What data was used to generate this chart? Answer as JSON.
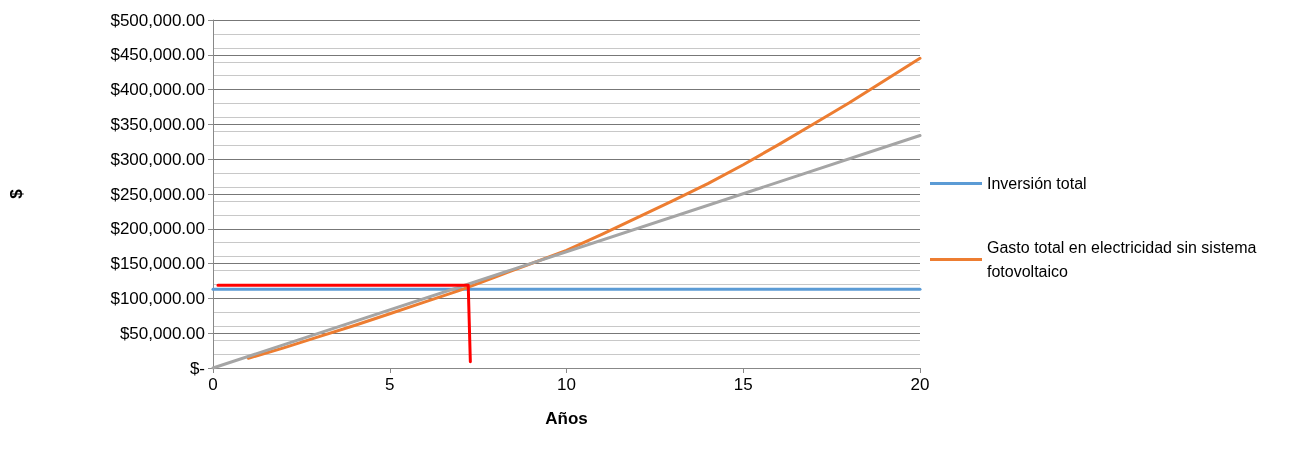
{
  "chart_data": {
    "type": "line",
    "xlabel": "Años",
    "ylabel": "$",
    "series": [
      {
        "name": "Inversión total",
        "color": "#5b9bd5",
        "x": [
          0,
          20
        ],
        "values": [
          113000,
          113000
        ]
      },
      {
        "name": "Gasto total en electricidad sin sistema fotovoltaico",
        "color": "#ed7d31",
        "x": [
          1,
          2,
          3,
          4,
          5,
          6,
          7,
          8,
          9,
          10,
          11,
          12,
          13,
          14,
          15,
          16,
          17,
          18,
          19,
          20
        ],
        "values": [
          14000,
          29000,
          45000,
          61000,
          78000,
          95000,
          112000,
          131000,
          150000,
          169000,
          192000,
          216000,
          240000,
          265000,
          292000,
          321000,
          351000,
          381000,
          413000,
          445000
        ]
      },
      {
        "color": "#a5a5a5",
        "x": [
          0,
          20
        ],
        "values": [
          0,
          334000
        ]
      },
      {
        "color": "#ff0000",
        "x": [
          0.14,
          7.22,
          7.28
        ],
        "values": [
          119000,
          119000,
          9000
        ]
      }
    ],
    "xlim": [
      0,
      20
    ],
    "xticks": [
      0,
      5,
      10,
      15,
      20
    ],
    "ylim": [
      0,
      500000
    ],
    "yticks": [
      {
        "value": 0,
        "label": "$-"
      },
      {
        "value": 50000,
        "label": "$50,000.00"
      },
      {
        "value": 100000,
        "label": "$100,000.00"
      },
      {
        "value": 150000,
        "label": "$150,000.00"
      },
      {
        "value": 200000,
        "label": "$200,000.00"
      },
      {
        "value": 250000,
        "label": "$250,000.00"
      },
      {
        "value": 300000,
        "label": "$300,000.00"
      },
      {
        "value": 350000,
        "label": "$350,000.00"
      },
      {
        "value": 400000,
        "label": "$400,000.00"
      },
      {
        "value": 450000,
        "label": "$450,000.00"
      },
      {
        "value": 500000,
        "label": "$500,000.00"
      }
    ],
    "grid": "y",
    "legend": "right",
    "marker": "none",
    "line_style": "solid"
  }
}
